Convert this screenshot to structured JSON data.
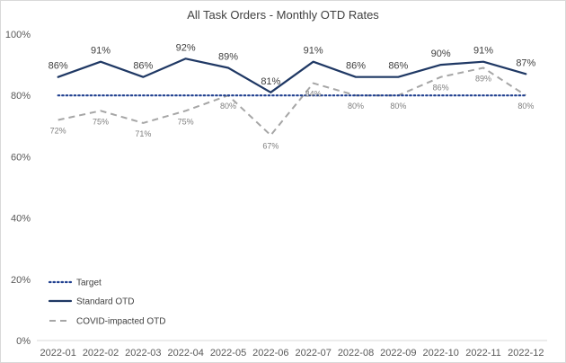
{
  "chart_data": {
    "type": "line",
    "title": "All Task Orders - Monthly OTD Rates",
    "categories": [
      "2022-01",
      "2022-02",
      "2022-03",
      "2022-04",
      "2022-05",
      "2022-06",
      "2022-07",
      "2022-08",
      "2022-09",
      "2022-10",
      "2022-11",
      "2022-12"
    ],
    "ylim": [
      0,
      100
    ],
    "yticks": [
      0,
      20,
      40,
      60,
      80,
      100
    ],
    "ytick_labels": [
      "0%",
      "20%",
      "40%",
      "60%",
      "80%",
      "100%"
    ],
    "grid": false,
    "legend_position": "bottom-left",
    "series": [
      {
        "name": "Target",
        "style": "dotted",
        "color": "#1f3f8f",
        "values": [
          80,
          80,
          80,
          80,
          80,
          80,
          80,
          80,
          80,
          80,
          80,
          80
        ],
        "data_labels": []
      },
      {
        "name": "Standard OTD",
        "style": "solid",
        "color": "#1f3864",
        "values": [
          86,
          91,
          86,
          92,
          89,
          81,
          91,
          86,
          86,
          90,
          91,
          87
        ],
        "data_labels": [
          "86%",
          "91%",
          "86%",
          "92%",
          "89%",
          "81%",
          "91%",
          "86%",
          "86%",
          "90%",
          "91%",
          "87%"
        ]
      },
      {
        "name": "COVID-impacted OTD",
        "style": "dashed",
        "color": "#a6a6a6",
        "values": [
          72,
          75,
          71,
          75,
          80,
          67,
          84,
          80,
          80,
          86,
          89,
          80
        ],
        "data_labels": [
          "72%",
          "75%",
          "71%",
          "75%",
          "80%",
          "67%",
          "84%",
          "80%",
          "80%",
          "86%",
          "89%",
          "80%"
        ]
      }
    ]
  }
}
